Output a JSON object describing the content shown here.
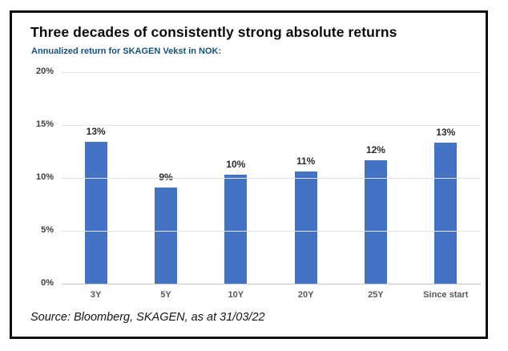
{
  "header": {
    "title": "Three decades of consistently strong absolute returns",
    "subtitle": "Annualized return for SKAGEN Vekst in NOK:"
  },
  "chart_data": {
    "type": "bar",
    "title": "Annualized return for SKAGEN Vekst in NOK:",
    "categories": [
      "3Y",
      "5Y",
      "10Y",
      "20Y",
      "25Y",
      "Since start"
    ],
    "values": [
      13.4,
      9.1,
      10.3,
      10.6,
      11.7,
      13.3
    ],
    "data_labels": [
      "13%",
      "9%",
      "10%",
      "11%",
      "12%",
      "13%"
    ],
    "y_ticks": [
      "20%",
      "15%",
      "10%",
      "5%",
      "0%"
    ],
    "ylim": [
      0,
      20
    ],
    "xlabel": "",
    "ylabel": "",
    "grid": true,
    "legend": false,
    "bar_color": "#4472C4",
    "gridline_color": "#e3e3e3",
    "axis_line_color": "#c6c6c6"
  },
  "footer": {
    "source": "Source: Bloomberg, SKAGEN, as at 31/03/22"
  }
}
